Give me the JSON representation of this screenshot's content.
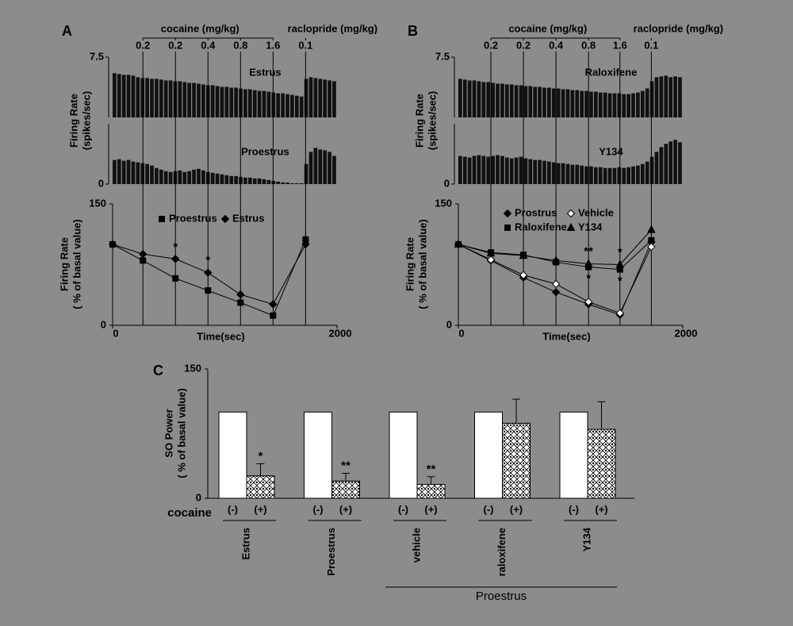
{
  "chart_data": [
    {
      "type": "trace",
      "panel_label": "A",
      "ylabel": [
        "Firing Rate",
        "(spikes/sec)"
      ],
      "ylim": [
        0,
        7.5
      ],
      "yticks": [
        0,
        7.5
      ],
      "xlim": [
        0,
        2000
      ],
      "color": "#111111",
      "treatments": [
        {
          "label": "cocaine (mg/kg)",
          "times": [
            270,
            560,
            850,
            1140,
            1430
          ],
          "doses": [
            "0.2",
            "0.2",
            "0.4",
            "0.8",
            "1.6"
          ]
        },
        {
          "label": "raclopride (mg/kg)",
          "times": [
            1720
          ],
          "doses": [
            "0.1"
          ]
        }
      ],
      "series": [
        {
          "name": "Estrus",
          "values": [
            5.5,
            5.4,
            5.3,
            5.3,
            5.2,
            5.0,
            4.9,
            4.9,
            4.8,
            4.8,
            4.7,
            4.6,
            4.6,
            4.5,
            4.5,
            4.4,
            4.3,
            4.3,
            4.2,
            4.1,
            4.0,
            4.0,
            3.9,
            3.8,
            3.8,
            3.7,
            3.7,
            3.6,
            3.5,
            3.5,
            3.4,
            3.3,
            3.3,
            3.2,
            3.1,
            3.0,
            3.0,
            2.9,
            2.8,
            2.7,
            2.6,
            4.8,
            5.0,
            4.9,
            4.8,
            4.7,
            4.6,
            4.5
          ]
        },
        {
          "name": "Proestrus",
          "values": [
            3.0,
            3.1,
            2.9,
            3.0,
            2.8,
            2.7,
            2.6,
            2.5,
            2.3,
            2.0,
            1.8,
            1.6,
            1.5,
            1.6,
            1.7,
            1.5,
            1.6,
            1.8,
            1.9,
            1.7,
            1.5,
            1.4,
            1.3,
            1.2,
            1.1,
            1.0,
            1.0,
            0.9,
            0.8,
            0.8,
            0.7,
            0.7,
            0.6,
            0.5,
            0.4,
            0.3,
            0.2,
            0.2,
            0.1,
            0.1,
            0.1,
            2.5,
            4.0,
            4.5,
            4.3,
            4.2,
            4.0,
            3.5
          ]
        }
      ]
    },
    {
      "type": "line",
      "xlabel": "Time(sec)",
      "ylabel": [
        "Firing Rate",
        "( % of basal value)"
      ],
      "xlim": [
        0,
        2000
      ],
      "xticks": [
        0,
        2000
      ],
      "ylim": [
        0,
        150
      ],
      "yticks": [
        0,
        150
      ],
      "legend": "top",
      "x": [
        0,
        270,
        560,
        850,
        1140,
        1430,
        1720
      ],
      "series": [
        {
          "name": "Proestrus",
          "marker": "square",
          "color": "#000000",
          "values": [
            100,
            80,
            58,
            43,
            28,
            12,
            106
          ],
          "errors": [
            0,
            3,
            4,
            3,
            3,
            3,
            10
          ]
        },
        {
          "name": "Estrus",
          "marker": "diamond",
          "color": "#000000",
          "values": [
            100,
            88,
            82,
            65,
            38,
            26,
            100
          ],
          "errors": [
            0,
            2,
            4,
            5,
            6,
            5,
            3
          ],
          "significance": [
            null,
            null,
            "*",
            "*",
            null,
            null,
            null
          ]
        }
      ]
    },
    {
      "type": "trace",
      "panel_label": "B",
      "ylabel": [
        "Firing Rate",
        "(spikes/sec)"
      ],
      "ylim": [
        0,
        7.5
      ],
      "yticks": [
        0,
        7.5
      ],
      "xlim": [
        0,
        2000
      ],
      "color": "#111111",
      "treatments": [
        {
          "label": "cocaine (mg/kg)",
          "times": [
            290,
            580,
            870,
            1160,
            1440
          ],
          "doses": [
            "0.2",
            "0.2",
            "0.4",
            "0.8",
            "1.6"
          ]
        },
        {
          "label": "raclopride (mg/kg)",
          "times": [
            1720
          ],
          "doses": [
            "0.1"
          ]
        }
      ],
      "series": [
        {
          "name": "Raloxifene",
          "values": [
            4.8,
            4.7,
            4.6,
            4.6,
            4.5,
            4.4,
            4.4,
            4.3,
            4.2,
            4.2,
            4.1,
            4.1,
            4.0,
            4.0,
            3.9,
            3.9,
            3.8,
            3.8,
            3.7,
            3.7,
            3.6,
            3.6,
            3.5,
            3.5,
            3.4,
            3.4,
            3.3,
            3.3,
            3.2,
            3.2,
            3.1,
            3.1,
            3.0,
            3.0,
            3.0,
            2.9,
            2.9,
            3.0,
            3.1,
            3.3,
            3.6,
            4.5,
            5.0,
            5.1,
            5.2,
            5.0,
            5.1,
            5.0
          ]
        },
        {
          "name": "Y134",
          "values": [
            3.5,
            3.4,
            3.3,
            3.5,
            3.6,
            3.5,
            3.4,
            3.5,
            3.6,
            3.5,
            3.3,
            3.2,
            3.3,
            3.4,
            3.2,
            3.1,
            3.0,
            3.0,
            2.9,
            2.8,
            2.7,
            2.6,
            2.6,
            2.5,
            2.4,
            2.4,
            2.3,
            2.2,
            2.2,
            2.1,
            2.1,
            2.0,
            2.0,
            2.0,
            2.1,
            2.0,
            2.1,
            2.2,
            2.3,
            2.5,
            2.8,
            3.4,
            4.0,
            4.6,
            5.0,
            5.3,
            5.5,
            5.2
          ]
        }
      ]
    },
    {
      "type": "line",
      "xlabel": "Time(sec)",
      "ylabel": [
        "Firing Rate",
        "( % of basal value)"
      ],
      "xlim": [
        0,
        2000
      ],
      "xticks": [
        0,
        2000
      ],
      "ylim": [
        0,
        150
      ],
      "yticks": [
        0,
        150
      ],
      "legend": "top",
      "x": [
        0,
        290,
        580,
        870,
        1160,
        1440,
        1720
      ],
      "series": [
        {
          "name": "Prostrus",
          "marker": "diamond",
          "color": "#000000",
          "values": [
            100,
            80,
            59,
            41,
            26,
            13,
            103
          ],
          "errors": [
            0,
            2,
            2,
            2,
            3,
            2,
            3
          ]
        },
        {
          "name": "Vehicle",
          "marker": "diamond",
          "color": "#000000",
          "fill": "#ffffff",
          "values": [
            100,
            81,
            62,
            51,
            29,
            15,
            97
          ],
          "errors": [
            0,
            2,
            2,
            3,
            4,
            3,
            3
          ]
        },
        {
          "name": "Raloxifene",
          "marker": "square",
          "color": "#000000",
          "values": [
            100,
            90,
            87,
            78,
            72,
            69,
            105
          ],
          "errors": [
            0,
            3,
            3,
            4,
            4,
            4,
            4
          ],
          "significance": [
            null,
            null,
            null,
            null,
            "*",
            "*",
            null
          ]
        },
        {
          "name": "Y134",
          "marker": "triangle",
          "color": "#000000",
          "values": [
            100,
            89,
            86,
            80,
            76,
            75,
            118
          ],
          "errors": [
            0,
            3,
            4,
            4,
            5,
            5,
            6
          ],
          "significance": [
            null,
            null,
            null,
            null,
            "**",
            "*",
            null
          ]
        }
      ]
    },
    {
      "type": "bar",
      "panel_label": "C",
      "ylabel": [
        "SO Power",
        "( % of basal value)"
      ],
      "ylim": [
        0,
        150
      ],
      "yticks": [
        0,
        150
      ],
      "row_label": "cocaine",
      "categories": [
        "Estrus",
        "Proestrus",
        "vehicle",
        "raloxifene",
        "Y134"
      ],
      "bracket": {
        "label": "Proestrus",
        "categories": [
          "vehicle",
          "raloxifene",
          "Y134"
        ]
      },
      "series": [
        {
          "name": "(-)",
          "color": "#ffffff",
          "values": [
            100,
            100,
            100,
            100,
            100
          ]
        },
        {
          "name": "(+)",
          "color": "#ffffff",
          "pattern": "crosshatch",
          "values": [
            26,
            20,
            16,
            87,
            80
          ],
          "errors": [
            14,
            9,
            9,
            28,
            32
          ],
          "significance": [
            "*",
            "**",
            "**",
            null,
            null
          ]
        }
      ]
    }
  ]
}
